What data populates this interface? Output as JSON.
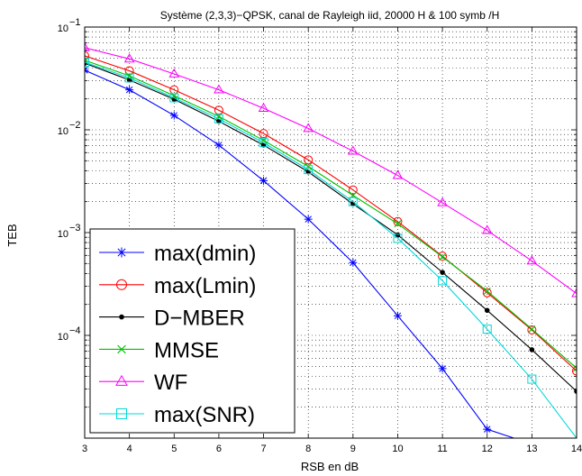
{
  "chart_data": {
    "type": "line",
    "title": "Système (2,3,3)−QPSK, canal de Rayleigh iid, 20000 H & 100 symb /H",
    "xlabel": "RSB en dB",
    "ylabel": "TEB",
    "xlim": [
      3,
      14
    ],
    "ylim": [
      1e-05,
      0.1
    ],
    "yscale": "log",
    "grid": true,
    "legend_position": "bottom-left",
    "x_ticks": [
      "3",
      "4",
      "5",
      "6",
      "7",
      "8",
      "9",
      "10",
      "11",
      "12",
      "13",
      "14"
    ],
    "y_ticks": [
      {
        "base": "10",
        "exp": "−1",
        "value": 0.1
      },
      {
        "base": "10",
        "exp": "−2",
        "value": 0.01
      },
      {
        "base": "10",
        "exp": "−3",
        "value": 0.001
      },
      {
        "base": "10",
        "exp": "−4",
        "value": 0.0001
      }
    ],
    "series": [
      {
        "name": "max(dmin)",
        "color": "#0000ff",
        "marker": "star",
        "x": [
          3,
          4,
          5,
          6,
          7,
          8,
          9,
          10,
          11,
          12,
          12.6
        ],
        "y": [
          0.038,
          0.0245,
          0.0138,
          0.0071,
          0.0032,
          0.00135,
          0.00051,
          0.000155,
          4.75e-05,
          1.22e-05,
          1e-05
        ]
      },
      {
        "name": "max(Lmin)",
        "color": "#ff0000",
        "marker": "circle",
        "x": [
          3,
          4,
          5,
          6,
          7,
          8,
          9,
          10,
          11,
          12,
          13,
          14
        ],
        "y": [
          0.0525,
          0.0375,
          0.0245,
          0.0155,
          0.0092,
          0.0051,
          0.0026,
          0.00128,
          0.00059,
          0.00026,
          0.000113,
          4.5e-05
        ]
      },
      {
        "name": "D−MBER",
        "color": "#000000",
        "marker": "dot",
        "x": [
          3,
          4,
          5,
          6,
          7,
          8,
          9,
          10,
          11,
          12,
          13,
          14
        ],
        "y": [
          0.0445,
          0.0305,
          0.0198,
          0.0121,
          0.0071,
          0.0039,
          0.0019,
          0.00095,
          0.00041,
          0.000175,
          7.25e-05,
          2.85e-05
        ]
      },
      {
        "name": "MMSE",
        "color": "#00c000",
        "marker": "x",
        "x": [
          3,
          4,
          5,
          6,
          7,
          8,
          9,
          10,
          11,
          12,
          13,
          14
        ],
        "y": [
          0.0475,
          0.0335,
          0.0215,
          0.0135,
          0.0079,
          0.0044,
          0.0023,
          0.00122,
          0.00058,
          0.00027,
          0.000115,
          4.8e-05
        ]
      },
      {
        "name": "WF",
        "color": "#ff00ff",
        "marker": "triangle",
        "x": [
          3,
          4,
          5,
          6,
          7,
          8,
          9,
          10,
          11,
          12,
          13,
          14
        ],
        "y": [
          0.063,
          0.049,
          0.035,
          0.0245,
          0.0162,
          0.0103,
          0.0062,
          0.0036,
          0.00195,
          0.00105,
          0.00053,
          0.000255
        ]
      },
      {
        "name": "max(SNR)",
        "color": "#00d8d8",
        "marker": "square",
        "x": [
          3,
          4,
          5,
          6,
          7,
          8,
          9,
          10,
          11,
          12,
          13,
          14
        ],
        "y": [
          0.0455,
          0.032,
          0.0205,
          0.0128,
          0.0075,
          0.0041,
          0.002,
          0.00088,
          0.00034,
          0.000115,
          3.75e-05,
          1e-05
        ]
      }
    ]
  }
}
